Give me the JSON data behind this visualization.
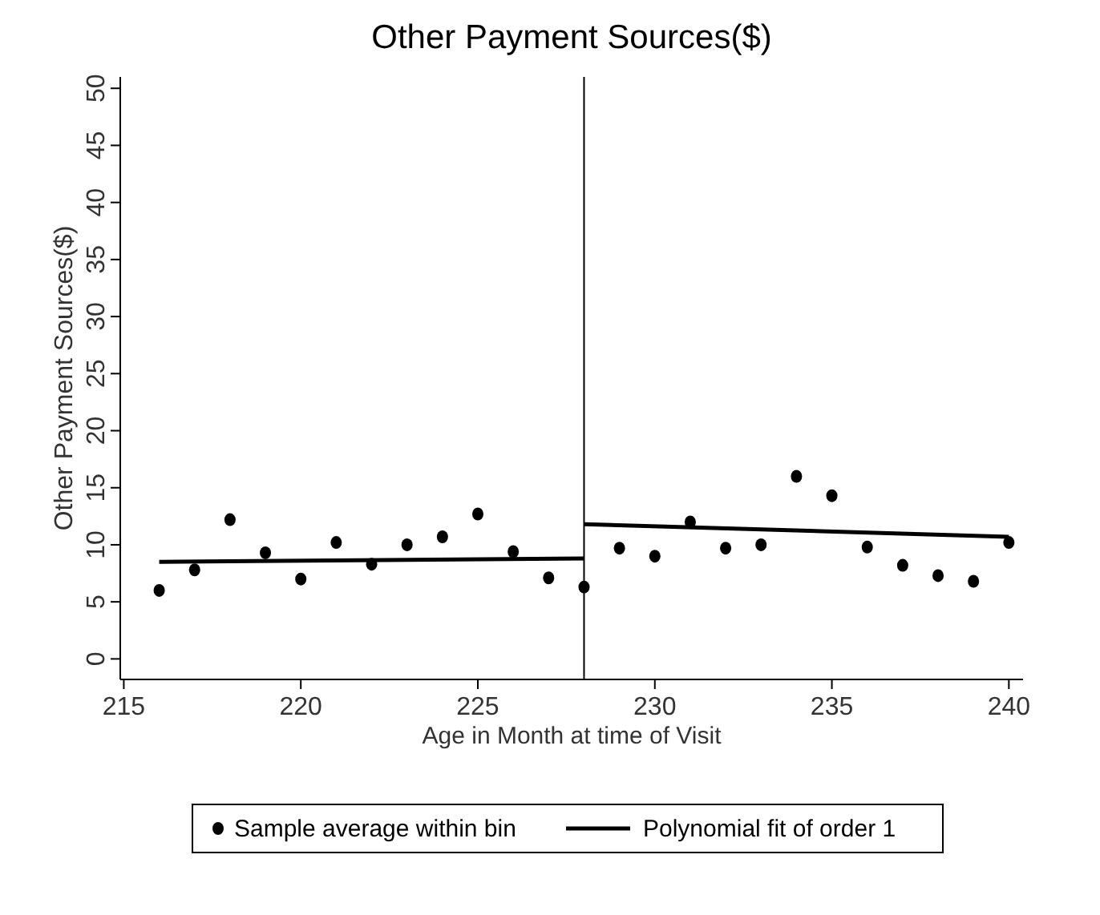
{
  "chart_data": {
    "type": "scatter",
    "title": "Other Payment Sources($)",
    "xlabel": "Age in Month at time of Visit",
    "ylabel": "Other Payment Sources($)",
    "series": [
      {
        "name": "Sample average within bin",
        "color": "#000000",
        "marker": "circle",
        "x": [
          216,
          217,
          218,
          219,
          220,
          221,
          222,
          223,
          224,
          225,
          226,
          227,
          228,
          229,
          230,
          231,
          232,
          233,
          234,
          235,
          236,
          237,
          238,
          239,
          240
        ],
        "values": [
          6,
          7.8,
          12.2,
          9.3,
          7,
          10.2,
          8.3,
          10,
          10.7,
          12.7,
          9.4,
          7.1,
          6.3,
          9.7,
          9,
          12,
          9.7,
          10,
          16,
          14.3,
          9.8,
          8.2,
          7.3,
          6.8,
          10.2
        ]
      },
      {
        "name": "Polynomial fit of order 1",
        "type": "line",
        "color": "#000000",
        "line_style": "solid",
        "x": [
          216,
          228
        ],
        "values": [
          8.5,
          8.8
        ]
      },
      {
        "type": "line",
        "color": "#000000",
        "line_style": "solid",
        "x": [
          228,
          240
        ],
        "values": [
          11.8,
          10.7
        ]
      }
    ],
    "xlim": [
      214.9,
      240.4
    ],
    "xticks": [
      215,
      220,
      225,
      230,
      235,
      240
    ],
    "ylim": [
      -1.8,
      51
    ],
    "yticks": [
      0,
      5,
      10,
      15,
      20,
      25,
      30,
      35,
      40,
      45,
      50
    ],
    "ref_lines": [
      {
        "axis": "x",
        "value": 228,
        "color": "#000000",
        "line_style": "solid"
      }
    ],
    "grid": false,
    "legend": "bottom"
  }
}
